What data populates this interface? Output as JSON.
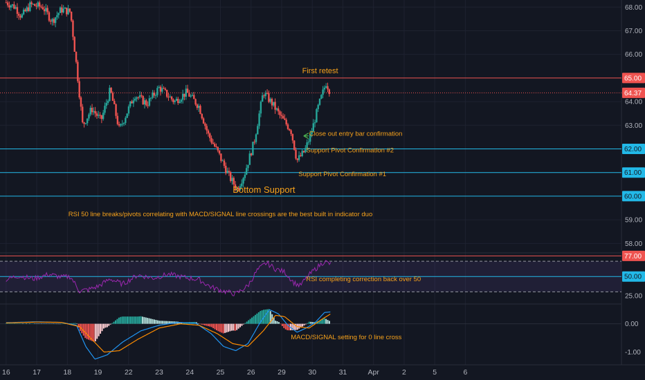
{
  "chart_data": {
    "type": "candlestick",
    "colors": {
      "background": "#131722",
      "up": "#26a69a",
      "down": "#ef5350",
      "resistance": "#ef5350",
      "support": "#22b9e8",
      "annotation": "#f7a21b",
      "rsi": "#9c27b0",
      "macd": "#2196f3",
      "signal": "#ff8c00",
      "arrow": "#4caf50",
      "rsi_band": "#7e57c2"
    },
    "price_panel": {
      "y_ticks": [
        "68.00",
        "67.00",
        "66.00",
        "65.00",
        "64.00",
        "63.00",
        "62.00",
        "61.00",
        "60.00",
        "59.00",
        "58.00"
      ],
      "ylim": [
        57.6,
        68.3
      ],
      "current_price": "64.37",
      "horizontal_levels": [
        {
          "value": 65.0,
          "label": "65.00",
          "kind": "resistance"
        },
        {
          "value": 64.37,
          "label": "64.37",
          "kind": "current"
        },
        {
          "value": 62.0,
          "label": "62.00",
          "kind": "support"
        },
        {
          "value": 61.0,
          "label": "61.00",
          "kind": "support"
        },
        {
          "value": 60.0,
          "label": "60.00",
          "kind": "support"
        }
      ],
      "annotations": [
        {
          "text": "First retest",
          "anchor_x": 25.67,
          "anchor_y": 65.2
        },
        {
          "text": "Close out entry bar confirmation",
          "anchor_x": 25.9,
          "anchor_y": 62.55
        },
        {
          "text": "Support Pivot Confirmation #2",
          "anchor_x": 25.8,
          "anchor_y": 61.85
        },
        {
          "text": "Support Pivot Confirmation #1",
          "anchor_x": 25.55,
          "anchor_y": 60.85
        },
        {
          "text": "Bottom Support",
          "anchor_x": 23.4,
          "anchor_y": 60.15
        },
        {
          "text": "RSI 50 line breaks/pivots correlating with MACD/SIGNAL line crossings are the best built in indicator duo",
          "anchor_x": 23.0,
          "anchor_y": 59.15
        }
      ],
      "candles_keypoints": [
        {
          "x": 16.0,
          "price": 68.2
        },
        {
          "x": 16.3,
          "price": 68.0
        },
        {
          "x": 16.5,
          "price": 67.6
        },
        {
          "x": 16.8,
          "price": 68.1
        },
        {
          "x": 17.2,
          "price": 68.0
        },
        {
          "x": 17.5,
          "price": 67.4
        },
        {
          "x": 17.8,
          "price": 67.9
        },
        {
          "x": 18.1,
          "price": 67.8
        },
        {
          "x": 18.3,
          "price": 65.5
        },
        {
          "x": 18.5,
          "price": 63.0
        },
        {
          "x": 18.8,
          "price": 63.7
        },
        {
          "x": 19.1,
          "price": 63.2
        },
        {
          "x": 19.4,
          "price": 64.5
        },
        {
          "x": 19.7,
          "price": 62.8
        },
        {
          "x": 20.2,
          "price": 64.3
        },
        {
          "x": 20.6,
          "price": 63.9
        },
        {
          "x": 21.0,
          "price": 64.6
        },
        {
          "x": 21.5,
          "price": 64.0
        },
        {
          "x": 21.9,
          "price": 64.4
        },
        {
          "x": 22.3,
          "price": 63.8
        },
        {
          "x": 22.6,
          "price": 62.6
        },
        {
          "x": 22.9,
          "price": 61.9
        },
        {
          "x": 23.3,
          "price": 60.8
        },
        {
          "x": 23.55,
          "price": 60.3
        },
        {
          "x": 23.8,
          "price": 61.0
        },
        {
          "x": 24.1,
          "price": 62.3
        },
        {
          "x": 24.4,
          "price": 64.4
        },
        {
          "x": 24.7,
          "price": 63.9
        },
        {
          "x": 25.0,
          "price": 63.3
        },
        {
          "x": 25.3,
          "price": 62.8
        },
        {
          "x": 25.5,
          "price": 61.5
        },
        {
          "x": 25.75,
          "price": 61.9
        },
        {
          "x": 25.95,
          "price": 62.6
        },
        {
          "x": 26.2,
          "price": 63.8
        },
        {
          "x": 26.45,
          "price": 64.8
        },
        {
          "x": 26.6,
          "price": 64.37
        }
      ]
    },
    "rsi_panel": {
      "y_ticks": [
        "77.00",
        "50.00",
        "25.00"
      ],
      "ylim": [
        14,
        81
      ],
      "overbought_label": "77.00",
      "midline_label": "50.00",
      "band_upper": 70,
      "band_lower": 30,
      "annotation": {
        "text": "RSI completing correction back over 50",
        "anchor_x": 25.8,
        "anchor_y": 44
      },
      "keypoints": [
        {
          "x": 16.0,
          "y": 46
        },
        {
          "x": 16.4,
          "y": 51
        },
        {
          "x": 16.9,
          "y": 47
        },
        {
          "x": 17.4,
          "y": 53
        },
        {
          "x": 17.8,
          "y": 49
        },
        {
          "x": 18.1,
          "y": 50
        },
        {
          "x": 18.4,
          "y": 31
        },
        {
          "x": 18.7,
          "y": 33
        },
        {
          "x": 19.0,
          "y": 37
        },
        {
          "x": 19.4,
          "y": 47
        },
        {
          "x": 19.8,
          "y": 40
        },
        {
          "x": 20.3,
          "y": 52
        },
        {
          "x": 20.8,
          "y": 48
        },
        {
          "x": 21.3,
          "y": 53
        },
        {
          "x": 21.8,
          "y": 49
        },
        {
          "x": 22.3,
          "y": 46
        },
        {
          "x": 22.7,
          "y": 36
        },
        {
          "x": 23.1,
          "y": 31
        },
        {
          "x": 23.5,
          "y": 27
        },
        {
          "x": 23.9,
          "y": 38
        },
        {
          "x": 24.2,
          "y": 58
        },
        {
          "x": 24.5,
          "y": 68
        },
        {
          "x": 24.8,
          "y": 60
        },
        {
          "x": 25.1,
          "y": 56
        },
        {
          "x": 25.4,
          "y": 42
        },
        {
          "x": 25.6,
          "y": 38
        },
        {
          "x": 25.85,
          "y": 50
        },
        {
          "x": 26.1,
          "y": 60
        },
        {
          "x": 26.4,
          "y": 70
        },
        {
          "x": 26.6,
          "y": 66
        }
      ]
    },
    "macd_panel": {
      "y_ticks": [
        "0.00",
        "-1.00"
      ],
      "ylim": [
        -1.45,
        0.7
      ],
      "annotation": {
        "text": "MACD/SIGNAL setting for 0 line cross",
        "anchor_x": 25.3,
        "anchor_y": -0.55
      },
      "macd_keypoints": [
        {
          "x": 16.0,
          "y": 0.04
        },
        {
          "x": 17.0,
          "y": 0.07
        },
        {
          "x": 17.8,
          "y": 0.05
        },
        {
          "x": 18.3,
          "y": -0.05
        },
        {
          "x": 18.6,
          "y": -0.8
        },
        {
          "x": 18.9,
          "y": -1.25
        },
        {
          "x": 19.3,
          "y": -1.1
        },
        {
          "x": 19.8,
          "y": -0.65
        },
        {
          "x": 20.4,
          "y": -0.25
        },
        {
          "x": 21.0,
          "y": -0.05
        },
        {
          "x": 21.6,
          "y": 0.05
        },
        {
          "x": 22.2,
          "y": 0.02
        },
        {
          "x": 22.7,
          "y": -0.35
        },
        {
          "x": 23.1,
          "y": -0.8
        },
        {
          "x": 23.5,
          "y": -0.95
        },
        {
          "x": 23.9,
          "y": -0.7
        },
        {
          "x": 24.3,
          "y": 0.05
        },
        {
          "x": 24.6,
          "y": 0.5
        },
        {
          "x": 24.9,
          "y": 0.35
        },
        {
          "x": 25.2,
          "y": -0.05
        },
        {
          "x": 25.5,
          "y": -0.3
        },
        {
          "x": 25.8,
          "y": -0.15
        },
        {
          "x": 26.1,
          "y": 0.05
        },
        {
          "x": 26.4,
          "y": 0.4
        },
        {
          "x": 26.6,
          "y": 0.42
        }
      ],
      "signal_keypoints": [
        {
          "x": 16.0,
          "y": 0.03
        },
        {
          "x": 17.0,
          "y": 0.06
        },
        {
          "x": 17.8,
          "y": 0.05
        },
        {
          "x": 18.4,
          "y": -0.1
        },
        {
          "x": 18.8,
          "y": -0.55
        },
        {
          "x": 19.2,
          "y": -1.0
        },
        {
          "x": 19.7,
          "y": -0.95
        },
        {
          "x": 20.3,
          "y": -0.55
        },
        {
          "x": 21.0,
          "y": -0.15
        },
        {
          "x": 21.7,
          "y": 0.0
        },
        {
          "x": 22.3,
          "y": -0.05
        },
        {
          "x": 22.9,
          "y": -0.35
        },
        {
          "x": 23.4,
          "y": -0.7
        },
        {
          "x": 23.9,
          "y": -0.8
        },
        {
          "x": 24.4,
          "y": -0.25
        },
        {
          "x": 24.8,
          "y": 0.3
        },
        {
          "x": 25.1,
          "y": 0.25
        },
        {
          "x": 25.5,
          "y": -0.1
        },
        {
          "x": 25.9,
          "y": -0.15
        },
        {
          "x": 26.3,
          "y": 0.15
        },
        {
          "x": 26.6,
          "y": 0.35
        }
      ]
    },
    "x_axis": {
      "xlim": [
        15.8,
        36.1
      ],
      "ticks": [
        {
          "label": "16",
          "x": 16.0
        },
        {
          "label": "17",
          "x": 17.0
        },
        {
          "label": "18",
          "x": 18.0
        },
        {
          "label": "19",
          "x": 19.0
        },
        {
          "label": "22",
          "x": 20.0
        },
        {
          "label": "23",
          "x": 21.0
        },
        {
          "label": "24",
          "x": 22.0
        },
        {
          "label": "25",
          "x": 23.0
        },
        {
          "label": "26",
          "x": 24.0
        },
        {
          "label": "29",
          "x": 25.0
        },
        {
          "label": "30",
          "x": 26.0
        },
        {
          "label": "31",
          "x": 27.0
        },
        {
          "label": "Apr",
          "x": 28.0
        },
        {
          "label": "2",
          "x": 29.0
        },
        {
          "label": "5",
          "x": 30.0
        },
        {
          "label": "6",
          "x": 31.0
        }
      ]
    }
  }
}
